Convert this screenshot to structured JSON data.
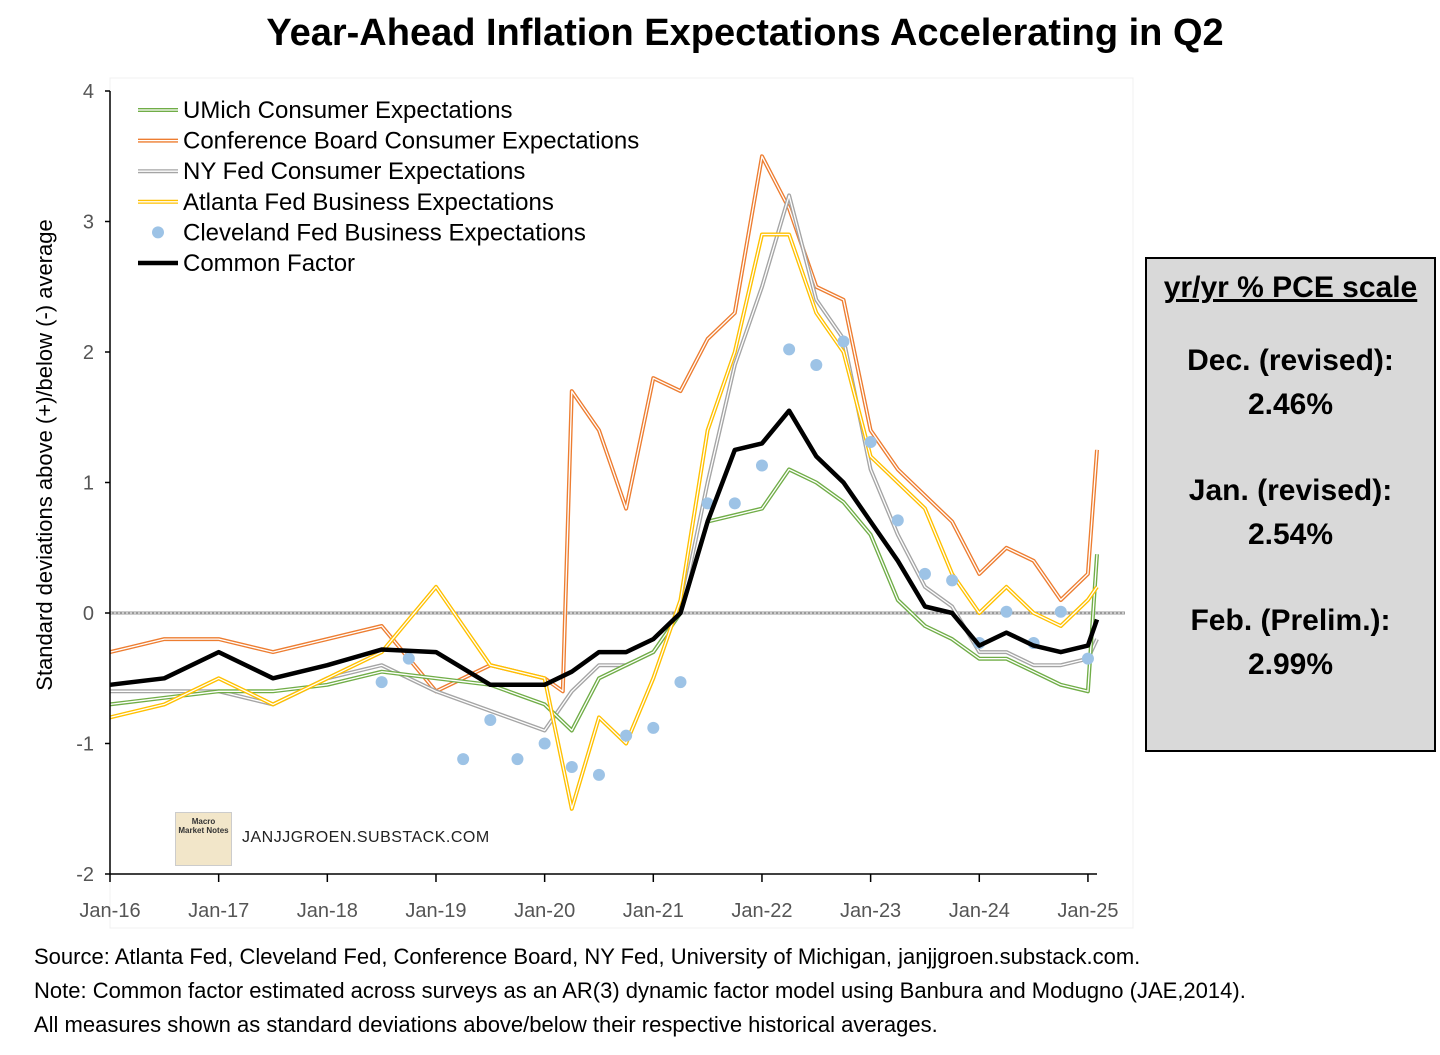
{
  "title": "Year-Ahead Inflation Expectations Accelerating in Q2",
  "ylabel": "Standard deviations above (+)/below (-) average",
  "watermark": "JANJJGROEN.SUBSTACK.COM",
  "logo_text": "Macro Market Notes",
  "pce_box": {
    "heading": "yr/yr % PCE scale",
    "entries": [
      {
        "label": "Dec. (revised):",
        "value": "2.46%"
      },
      {
        "label": "Jan. (revised):",
        "value": "2.54%"
      },
      {
        "label": "Feb. (Prelim.):",
        "value": "2.99%"
      }
    ]
  },
  "notes": [
    "Source: Atlanta Fed, Cleveland Fed, Conference Board, NY Fed, University of Michigan, janjjgroen.substack.com.",
    "Note: Common factor estimated  across surveys as an AR(3) dynamic factor model using Banbura and Modugno (JAE,2014).",
    "All measures shown as standard deviations above/below their respective historical averages."
  ],
  "colors": {
    "umich": "#70ad47",
    "conference": "#ed7d31",
    "nyfed": "#a5a5a5",
    "atlanta": "#ffc000",
    "cleveland": "#9dc3e6",
    "common": "#000000"
  },
  "chart_data": {
    "type": "line",
    "title": "Year-Ahead Inflation Expectations Accelerating in Q2",
    "ylabel": "Standard deviations above (+)/below (-) average",
    "ylim": [
      -2,
      4
    ],
    "yticks": [
      "-2",
      "-1",
      "0",
      "1",
      "2",
      "3",
      "4"
    ],
    "xticks": [
      "Jan-16",
      "Jan-17",
      "Jan-18",
      "Jan-19",
      "Jan-20",
      "Jan-21",
      "Jan-22",
      "Jan-23",
      "Jan-24",
      "Jan-25"
    ],
    "x_start": "2016-01",
    "x_end": "2025-02",
    "legend_position": "top-left",
    "zero_line": true,
    "series": [
      {
        "name": "UMich Consumer Expectations",
        "key": "umich",
        "style": "line",
        "x": [
          "2016-01",
          "2016-07",
          "2017-01",
          "2017-07",
          "2018-01",
          "2018-07",
          "2019-01",
          "2019-07",
          "2020-01",
          "2020-04",
          "2020-07",
          "2020-10",
          "2021-01",
          "2021-04",
          "2021-07",
          "2021-10",
          "2022-01",
          "2022-04",
          "2022-07",
          "2022-10",
          "2023-01",
          "2023-04",
          "2023-07",
          "2023-10",
          "2024-01",
          "2024-04",
          "2024-07",
          "2024-10",
          "2025-01",
          "2025-02"
        ],
        "values": [
          -0.7,
          -0.65,
          -0.6,
          -0.6,
          -0.55,
          -0.45,
          -0.5,
          -0.55,
          -0.7,
          -0.9,
          -0.5,
          -0.4,
          -0.3,
          0.0,
          0.7,
          0.75,
          0.8,
          1.1,
          1.0,
          0.85,
          0.6,
          0.1,
          -0.1,
          -0.2,
          -0.35,
          -0.35,
          -0.45,
          -0.55,
          -0.6,
          0.45
        ]
      },
      {
        "name": "Conference Board Consumer Expectations",
        "key": "conference",
        "style": "line",
        "x": [
          "2016-01",
          "2016-07",
          "2017-01",
          "2017-07",
          "2018-01",
          "2018-07",
          "2019-01",
          "2019-07",
          "2020-01",
          "2020-03",
          "2020-04",
          "2020-07",
          "2020-10",
          "2021-01",
          "2021-04",
          "2021-07",
          "2021-10",
          "2022-01",
          "2022-04",
          "2022-07",
          "2022-10",
          "2023-01",
          "2023-04",
          "2023-07",
          "2023-10",
          "2024-01",
          "2024-04",
          "2024-07",
          "2024-10",
          "2025-01",
          "2025-02"
        ],
        "values": [
          -0.3,
          -0.2,
          -0.2,
          -0.3,
          -0.2,
          -0.1,
          -0.6,
          -0.4,
          -0.5,
          -0.6,
          1.7,
          1.4,
          0.8,
          1.8,
          1.7,
          2.1,
          2.3,
          3.5,
          3.1,
          2.5,
          2.4,
          1.4,
          1.1,
          0.9,
          0.7,
          0.3,
          0.5,
          0.4,
          0.1,
          0.3,
          1.25
        ]
      },
      {
        "name": "NY Fed Consumer Expectations",
        "key": "nyfed",
        "style": "line",
        "x": [
          "2016-01",
          "2016-07",
          "2017-01",
          "2017-07",
          "2018-01",
          "2018-07",
          "2019-01",
          "2019-07",
          "2020-01",
          "2020-04",
          "2020-07",
          "2020-10",
          "2021-01",
          "2021-04",
          "2021-07",
          "2021-10",
          "2022-01",
          "2022-04",
          "2022-07",
          "2022-10",
          "2023-01",
          "2023-04",
          "2023-07",
          "2023-10",
          "2024-01",
          "2024-04",
          "2024-07",
          "2024-10",
          "2025-01",
          "2025-02"
        ],
        "values": [
          -0.6,
          -0.6,
          -0.6,
          -0.7,
          -0.5,
          -0.4,
          -0.6,
          -0.75,
          -0.9,
          -0.6,
          -0.4,
          -0.4,
          -0.3,
          0.0,
          1.0,
          1.9,
          2.5,
          3.2,
          2.4,
          2.1,
          1.1,
          0.6,
          0.2,
          0.05,
          -0.3,
          -0.3,
          -0.4,
          -0.4,
          -0.35,
          -0.2
        ]
      },
      {
        "name": "Atlanta Fed Business Expectations",
        "key": "atlanta",
        "style": "line",
        "x": [
          "2016-01",
          "2016-07",
          "2017-01",
          "2017-07",
          "2018-01",
          "2018-07",
          "2019-01",
          "2019-07",
          "2020-01",
          "2020-04",
          "2020-07",
          "2020-10",
          "2021-01",
          "2021-04",
          "2021-07",
          "2021-10",
          "2022-01",
          "2022-04",
          "2022-07",
          "2022-10",
          "2023-01",
          "2023-04",
          "2023-07",
          "2023-10",
          "2024-01",
          "2024-04",
          "2024-07",
          "2024-10",
          "2025-01",
          "2025-02"
        ],
        "values": [
          -0.8,
          -0.7,
          -0.5,
          -0.7,
          -0.5,
          -0.3,
          0.2,
          -0.4,
          -0.5,
          -1.5,
          -0.8,
          -1.0,
          -0.5,
          0.1,
          1.4,
          2.0,
          2.9,
          2.9,
          2.3,
          2.0,
          1.2,
          1.0,
          0.8,
          0.3,
          0.0,
          0.2,
          0.0,
          -0.1,
          0.1,
          0.2
        ]
      },
      {
        "name": "Cleveland Fed Business Expectations",
        "key": "cleveland",
        "style": "dots",
        "x": [
          "2018-07",
          "2018-10",
          "2019-04",
          "2019-07",
          "2019-10",
          "2020-01",
          "2020-04",
          "2020-07",
          "2020-10",
          "2021-01",
          "2021-04",
          "2021-07",
          "2021-10",
          "2022-01",
          "2022-04",
          "2022-07",
          "2022-10",
          "2023-01",
          "2023-04",
          "2023-07",
          "2023-10",
          "2024-01",
          "2024-04",
          "2024-07",
          "2024-10",
          "2025-01"
        ],
        "values": [
          -0.53,
          -0.35,
          -1.12,
          -0.82,
          -1.12,
          -1.0,
          -1.18,
          -1.24,
          -0.94,
          -0.88,
          -0.53,
          0.84,
          0.84,
          1.13,
          2.02,
          1.9,
          2.08,
          1.31,
          0.71,
          0.3,
          0.25,
          -0.23,
          0.01,
          -0.23,
          0.01,
          -0.35
        ]
      },
      {
        "name": "Common Factor",
        "key": "common",
        "style": "thick",
        "x": [
          "2016-01",
          "2016-07",
          "2017-01",
          "2017-07",
          "2018-01",
          "2018-07",
          "2019-01",
          "2019-07",
          "2020-01",
          "2020-04",
          "2020-07",
          "2020-10",
          "2021-01",
          "2021-04",
          "2021-07",
          "2021-10",
          "2022-01",
          "2022-04",
          "2022-07",
          "2022-10",
          "2023-01",
          "2023-04",
          "2023-07",
          "2023-10",
          "2024-01",
          "2024-04",
          "2024-07",
          "2024-10",
          "2025-01",
          "2025-02"
        ],
        "values": [
          -0.55,
          -0.5,
          -0.3,
          -0.5,
          -0.4,
          -0.28,
          -0.3,
          -0.55,
          -0.55,
          -0.45,
          -0.3,
          -0.3,
          -0.2,
          0.0,
          0.7,
          1.25,
          1.3,
          1.55,
          1.2,
          1.0,
          0.7,
          0.4,
          0.05,
          0.0,
          -0.25,
          -0.15,
          -0.25,
          -0.3,
          -0.25,
          -0.05
        ]
      }
    ]
  }
}
